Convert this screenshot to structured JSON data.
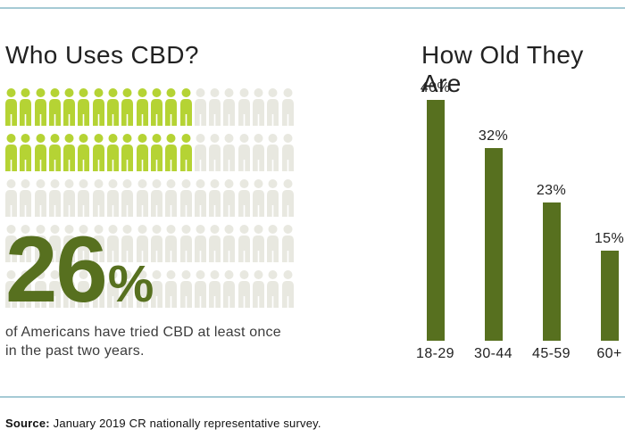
{
  "page": {
    "rule_color": "#a5cad5",
    "background": "#ffffff"
  },
  "chart_data": [
    {
      "type": "pictograph",
      "title": "Who Uses CBD?",
      "value": 26,
      "total": 100,
      "unit": "percent",
      "rows": 5,
      "cols": 20,
      "filled_per_row": [
        13,
        13,
        0,
        0,
        0
      ],
      "stat_value": "26",
      "stat_unit": "%",
      "caption_lines": [
        "of Americans have tried CBD at least once",
        "in the past two years."
      ],
      "filled_color": "#b5d334",
      "empty_color": "#e8e8e0",
      "stat_color": "#57701f"
    },
    {
      "type": "bar",
      "title": "How Old They Are",
      "categories": [
        "18-29",
        "30-44",
        "45-59",
        "60+"
      ],
      "values": [
        40,
        32,
        23,
        15
      ],
      "value_labels": [
        "40%",
        "32%",
        "23%",
        "15%"
      ],
      "xlabel": "",
      "ylabel": "",
      "ylim": [
        0,
        40
      ],
      "grid": false,
      "legend": false,
      "bar_color": "#57701f"
    }
  ],
  "footer": {
    "source_label": "Source:",
    "source_text": " January 2019 CR nationally representative survey."
  }
}
